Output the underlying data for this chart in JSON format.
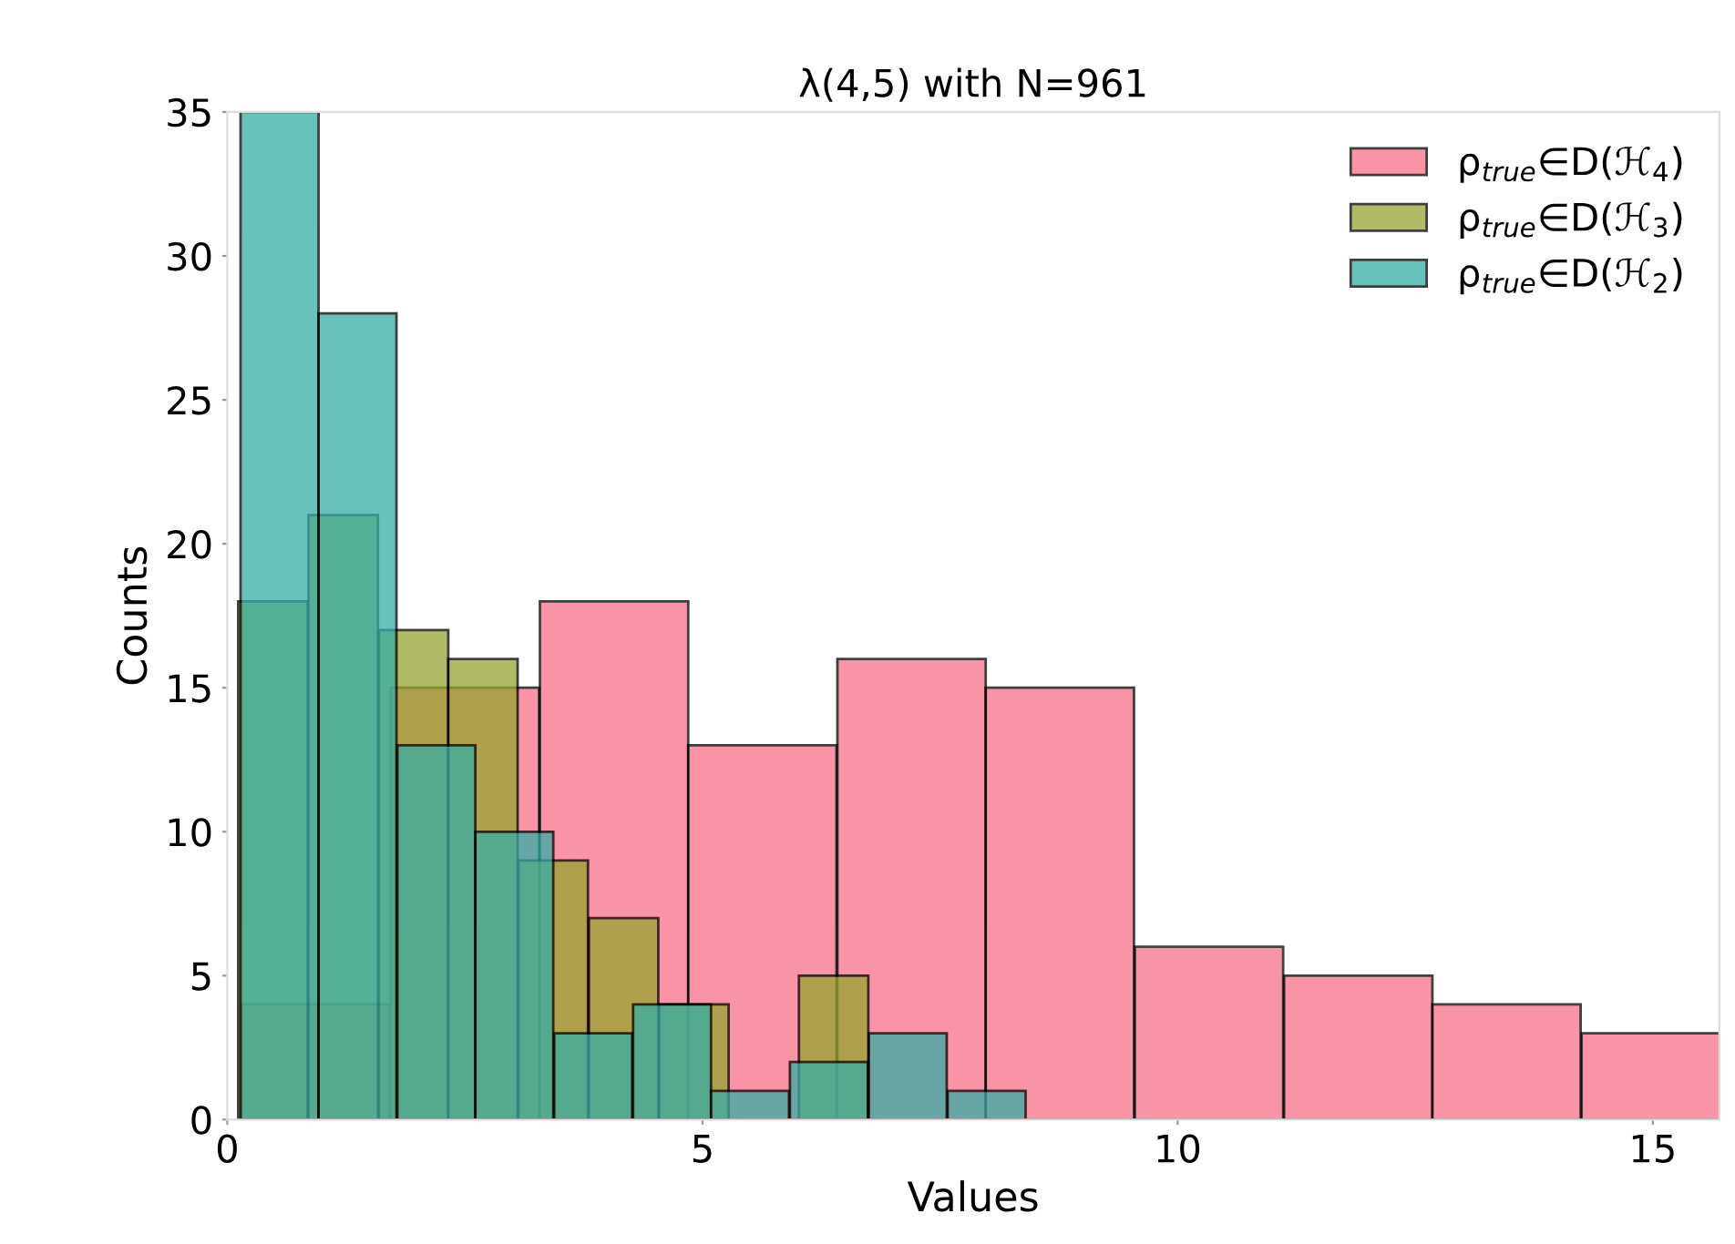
{
  "chart_data": {
    "type": "bar",
    "title": "λ(4,5) with N=961",
    "xlabel": "Values",
    "ylabel": "Counts",
    "xlim": [
      0,
      15.7
    ],
    "ylim": [
      0,
      35
    ],
    "xticks": [
      0,
      5,
      10,
      15
    ],
    "yticks": [
      0,
      5,
      10,
      15,
      20,
      25,
      30,
      35
    ],
    "grid": false,
    "legend": "top right",
    "series": [
      {
        "name": "ρ$_{true}$∈D(ℋ$_{4}$)",
        "color": "#f77189",
        "x": [
          0.93,
          2.5,
          4.07,
          5.63,
          7.2,
          8.76,
          10.33,
          11.9,
          13.46,
          15.03
        ],
        "values": [
          4,
          15,
          18,
          13,
          16,
          15,
          6,
          5,
          4,
          3
        ]
      },
      {
        "name": "ρ$_{true}$∈D(ℋ$_{3}$)",
        "color": "#97a431",
        "x": [
          0.48,
          1.22,
          1.96,
          2.69,
          3.43,
          4.17,
          4.91,
          6.38
        ],
        "values": [
          18,
          21,
          17,
          16,
          9,
          7,
          4,
          5
        ]
      },
      {
        "name": "ρ$_{true}$∈D(ℋ$_{2}$)",
        "color": "#36ada4",
        "x": [
          0.55,
          1.37,
          2.2,
          3.02,
          3.85,
          4.68,
          5.5,
          6.33,
          7.16,
          7.99
        ],
        "values": [
          35,
          28,
          13,
          10,
          3,
          4,
          1,
          2,
          3,
          1
        ]
      }
    ]
  }
}
